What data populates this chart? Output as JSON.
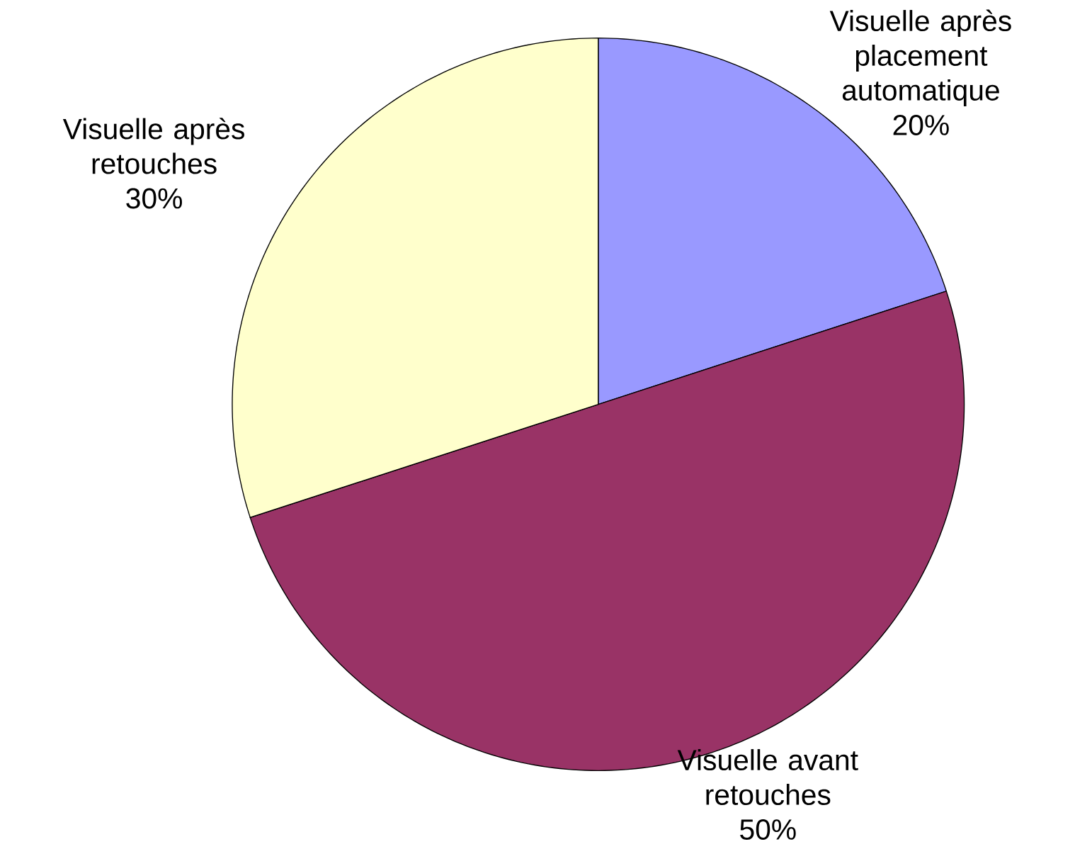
{
  "chart_data": {
    "type": "pie",
    "categories": [
      "Visuelle après placement automatique",
      "Visuelle avant retouches",
      "Visuelle après retouches"
    ],
    "values": [
      20,
      50,
      30
    ],
    "value_labels": [
      "20%",
      "50%",
      "30%"
    ],
    "colors": [
      "#9999ff",
      "#993366",
      "#ffffcc"
    ]
  }
}
